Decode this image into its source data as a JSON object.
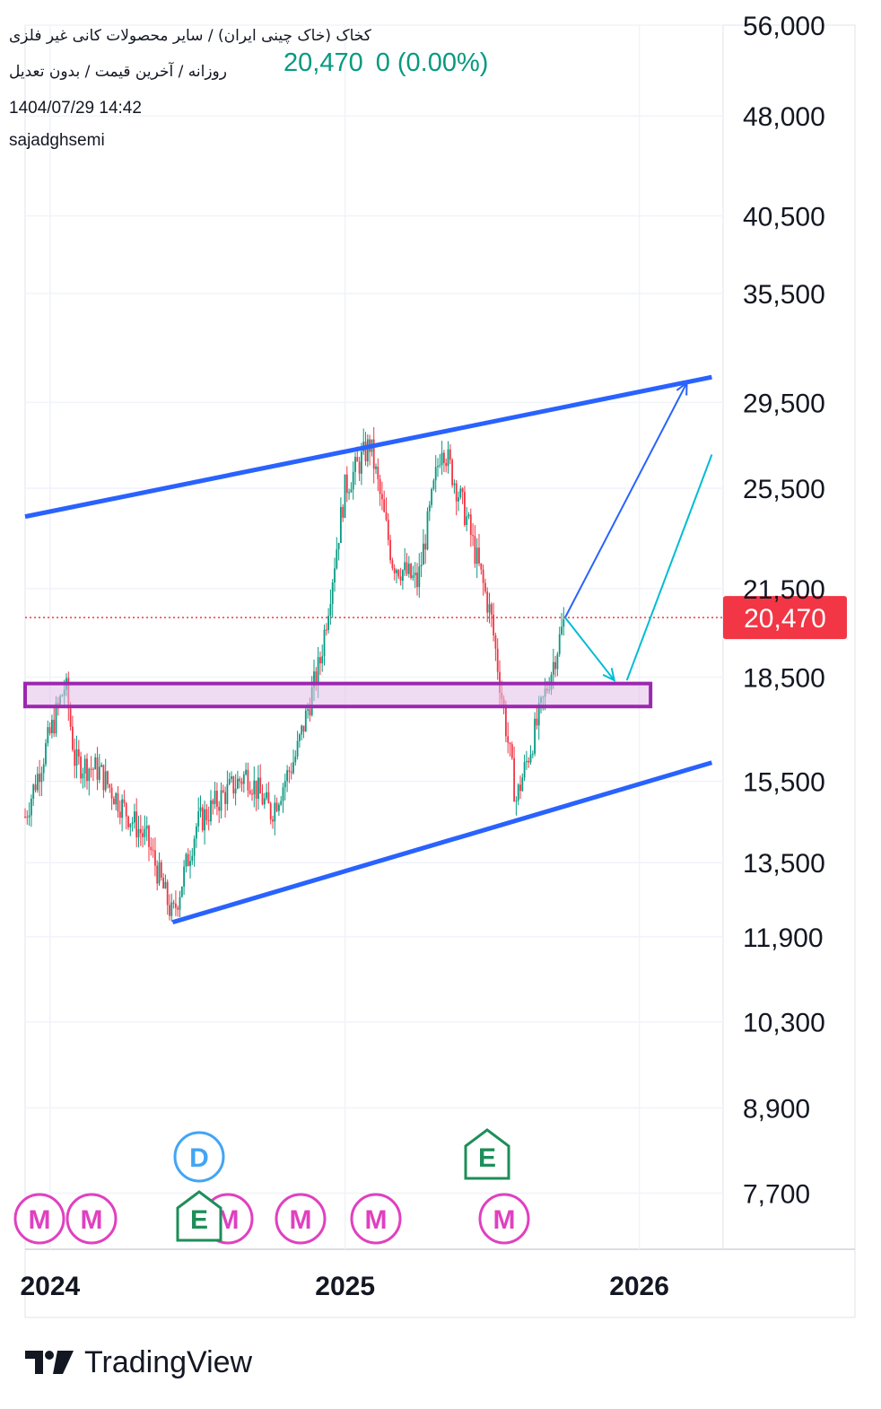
{
  "header": {
    "title": "کخاک (خاک چینی ایران) / سایر محصولات کانی غیر فلزی",
    "interval": "روزانه / آخرین قیمت / بدون تعدیل",
    "price": "20,470",
    "change": "0 (0.00%)",
    "timestamp": "1404/07/29 14:42",
    "author": "sajadghsemi"
  },
  "footer": {
    "brand": "TradingView"
  },
  "colors": {
    "up": "#089981",
    "down": "#f23645",
    "channel": "#2962ff",
    "zone_border": "#9c27b0",
    "zone_fill": "#e1bee7",
    "arrow_blue": "#2962ff",
    "arrow_cyan": "#00bcd4",
    "price_label": "#f23645",
    "event_m": "#e040c0",
    "event_d": "#42a5f5",
    "event_e": "#1e8e5a"
  },
  "chart_data": {
    "type": "candlestick",
    "y_scale": "log",
    "x_ticks": [
      "2024",
      "2025",
      "2026"
    ],
    "y_ticks": [
      "56,000",
      "48,000",
      "40,500",
      "35,500",
      "29,500",
      "25,500",
      "21,500",
      "18,500",
      "15,500",
      "13,500",
      "11,900",
      "10,300",
      "8,900",
      "7,700"
    ],
    "last_price": 20470,
    "last_price_label": "20,470",
    "price_path": [
      [
        "2023-12",
        14600
      ],
      [
        "2024-01",
        16800
      ],
      [
        "2024-01-20",
        18300
      ],
      [
        "2024-02",
        16000
      ],
      [
        "2024-03",
        15800
      ],
      [
        "2024-04",
        14800
      ],
      [
        "2024-05",
        14000
      ],
      [
        "2024-06",
        12300
      ],
      [
        "2024-07",
        14400
      ],
      [
        "2024-08",
        15100
      ],
      [
        "2024-09",
        15700
      ],
      [
        "2024-10",
        14700
      ],
      [
        "2024-11",
        16200
      ],
      [
        "2024-12",
        19000
      ],
      [
        "2025-01",
        25500
      ],
      [
        "2025-02",
        27500
      ],
      [
        "2025-03",
        22500
      ],
      [
        "2025-04",
        21700
      ],
      [
        "2025-05",
        27600
      ],
      [
        "2025-06",
        24200
      ],
      [
        "2025-07",
        20500
      ],
      [
        "2025-08",
        15000
      ],
      [
        "2025-09",
        17500
      ],
      [
        "2025-10",
        20470
      ]
    ],
    "channel_upper": [
      [
        "2023-12",
        24300
      ],
      [
        "2026-04",
        30800
      ]
    ],
    "channel_lower": [
      [
        "2024-06",
        12200
      ],
      [
        "2026-04",
        16000
      ]
    ],
    "support_zone": [
      17600,
      18300
    ],
    "projection": {
      "direct": [
        [
          "2025-10",
          20470
        ],
        [
          "2026-03",
          30500
        ]
      ],
      "pullback": [
        [
          "2025-10",
          20470
        ],
        [
          "2025-12",
          18400
        ],
        [
          "2026-04",
          27000
        ]
      ]
    },
    "events": [
      {
        "type": "M",
        "row": "bottom"
      },
      {
        "type": "M",
        "row": "bottom"
      },
      {
        "type": "M",
        "row": "bottom"
      },
      {
        "type": "M",
        "row": "bottom"
      },
      {
        "type": "M",
        "row": "bottom"
      },
      {
        "type": "M",
        "row": "bottom"
      },
      {
        "type": "D",
        "row": "top"
      },
      {
        "type": "E",
        "row": "bottom"
      },
      {
        "type": "E",
        "row": "top"
      }
    ]
  }
}
